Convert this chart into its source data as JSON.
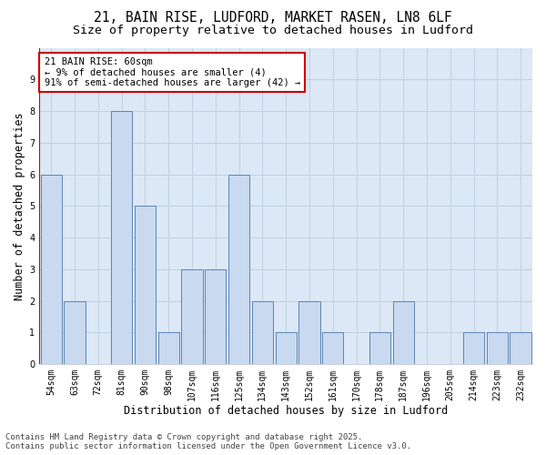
{
  "title_line1": "21, BAIN RISE, LUDFORD, MARKET RASEN, LN8 6LF",
  "title_line2": "Size of property relative to detached houses in Ludford",
  "xlabel": "Distribution of detached houses by size in Ludford",
  "ylabel": "Number of detached properties",
  "categories": [
    "54sqm",
    "63sqm",
    "72sqm",
    "81sqm",
    "90sqm",
    "98sqm",
    "107sqm",
    "116sqm",
    "125sqm",
    "134sqm",
    "143sqm",
    "152sqm",
    "161sqm",
    "170sqm",
    "178sqm",
    "187sqm",
    "196sqm",
    "205sqm",
    "214sqm",
    "223sqm",
    "232sqm"
  ],
  "values": [
    6,
    2,
    0,
    8,
    5,
    1,
    3,
    3,
    6,
    2,
    1,
    2,
    1,
    0,
    1,
    2,
    0,
    0,
    1,
    1,
    1
  ],
  "bar_color": "#c9d9f0",
  "bar_edge_color": "#5b85b5",
  "ref_line_color": "#cc0000",
  "annotation_text": "21 BAIN RISE: 60sqm\n← 9% of detached houses are smaller (4)\n91% of semi-detached houses are larger (42) →",
  "annotation_box_color": "white",
  "annotation_box_edge_color": "#cc0000",
  "ylim": [
    0,
    10
  ],
  "yticks": [
    0,
    1,
    2,
    3,
    4,
    5,
    6,
    7,
    8,
    9,
    10
  ],
  "grid_color": "#c0d0e0",
  "plot_bg_color": "#dce8f5",
  "fig_bg_color": "#ffffff",
  "footer_line1": "Contains HM Land Registry data © Crown copyright and database right 2025.",
  "footer_line2": "Contains public sector information licensed under the Open Government Licence v3.0.",
  "title_fontsize": 10.5,
  "subtitle_fontsize": 9.5,
  "axis_label_fontsize": 8.5,
  "tick_fontsize": 7,
  "annotation_fontsize": 7.5,
  "footer_fontsize": 6.5
}
